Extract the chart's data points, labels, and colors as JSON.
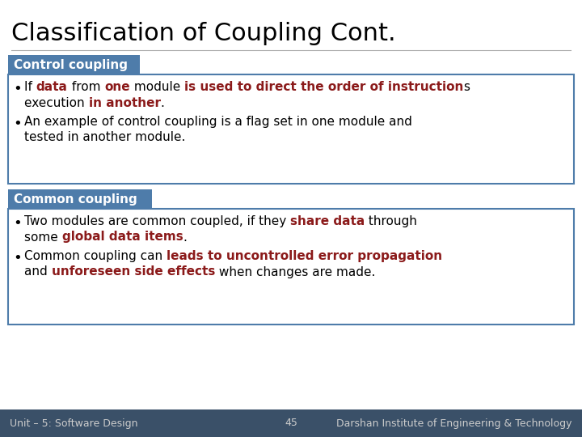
{
  "title": "Classification of Coupling Cont.",
  "title_fontsize": 22,
  "title_color": "#000000",
  "bg_color": "#ffffff",
  "header1": "Control coupling",
  "header2": "Common coupling",
  "header_bg": "#4e7caa",
  "header_text_color": "#ffffff",
  "box_border_color": "#4e7caa",
  "red_color": "#8b1a1a",
  "footer_left": "Unit – 5: Software Design",
  "footer_center": "45",
  "footer_right": "Darshan Institute of Engineering & Technology",
  "footer_color": "#cccccc",
  "footer_bg": "#3a5068",
  "footer_fontsize": 9
}
